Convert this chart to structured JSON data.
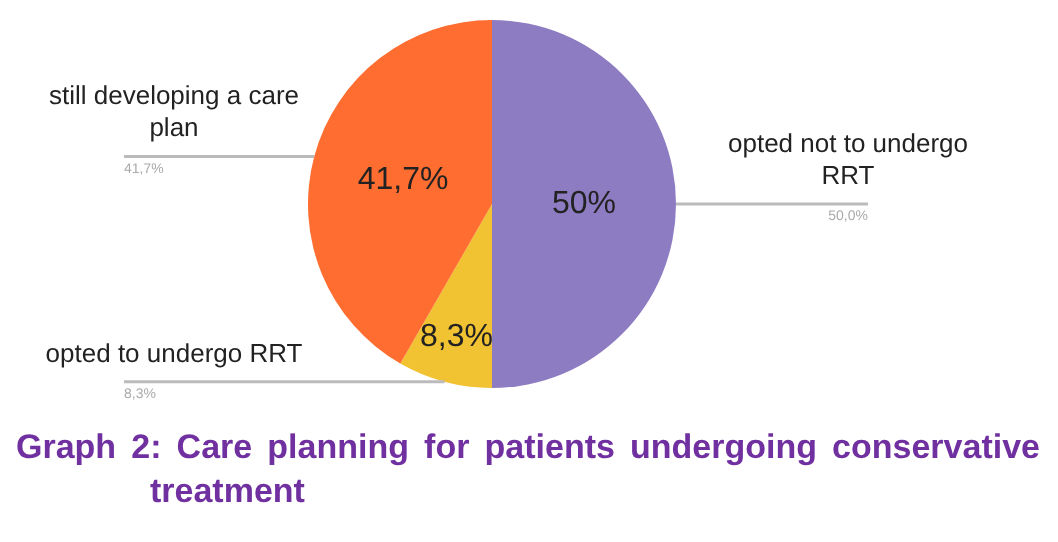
{
  "chart_data": {
    "type": "pie",
    "title": "Graph 2: Care planning for patients undergoing conservative treatment",
    "categories": [
      "opted not to undergo RRT",
      "opted to undergo RRT",
      "still developing a care plan"
    ],
    "values": [
      50,
      8.3,
      41.7
    ],
    "colors": [
      "#8e7cc3",
      "#f1c232",
      "#ff6d31"
    ],
    "value_labels": [
      "50%",
      "8,3%",
      "41,7%"
    ],
    "annotations": [
      "50,0%",
      "8,3%",
      "41,7%"
    ]
  }
}
